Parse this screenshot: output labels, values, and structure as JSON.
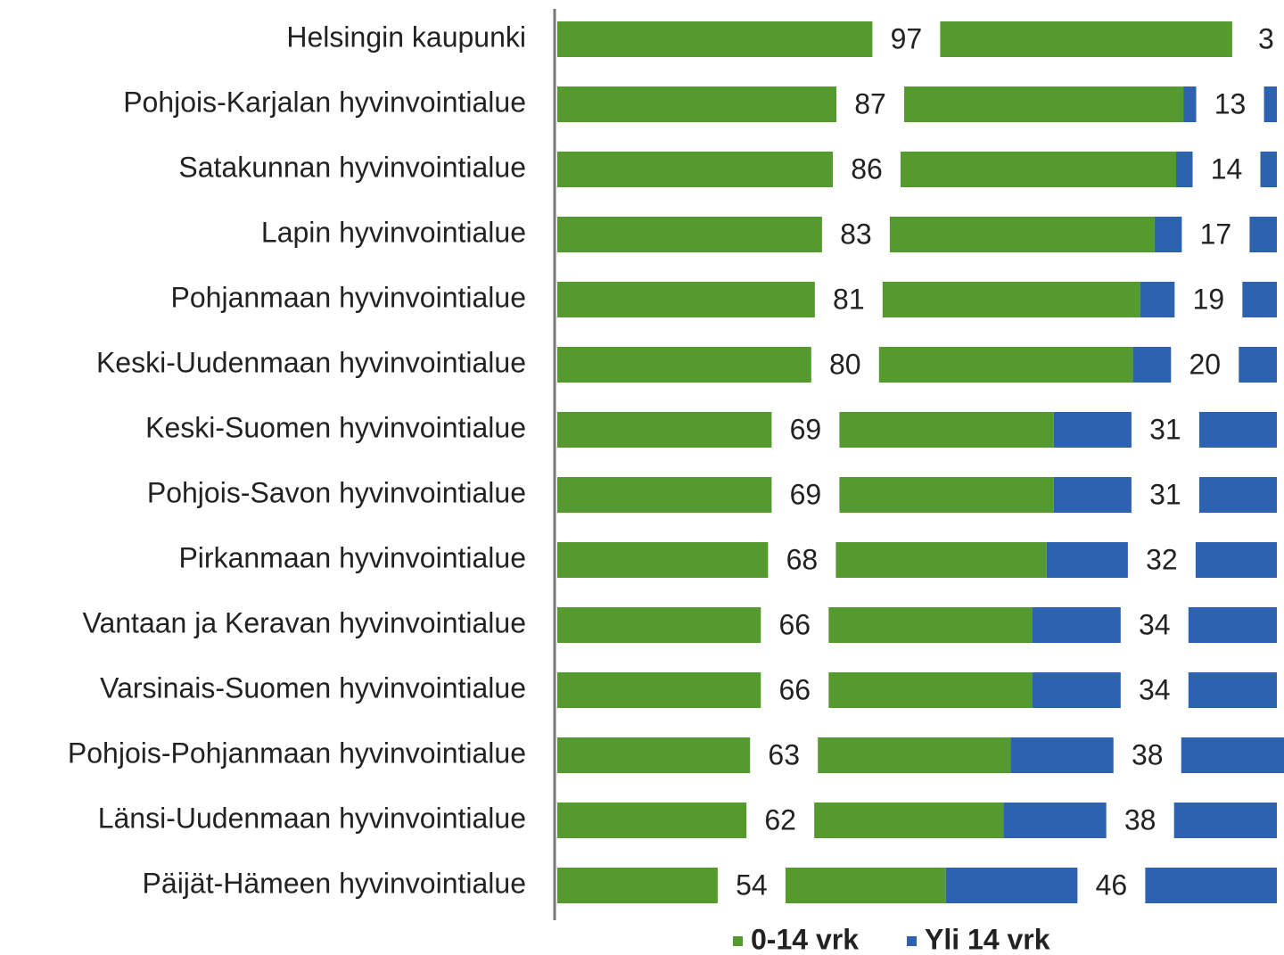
{
  "chart_data": {
    "type": "bar",
    "orientation": "horizontal",
    "stacked": true,
    "categories": [
      "Helsingin kaupunki",
      "Pohjois-Karjalan hyvinvointialue",
      "Satakunnan hyvinvointialue",
      "Lapin hyvinvointialue",
      "Pohjanmaan hyvinvointialue",
      "Keski-Uudenmaan hyvinvointialue",
      "Keski-Suomen hyvinvointialue",
      "Pohjois-Savon hyvinvointialue",
      "Pirkanmaan hyvinvointialue",
      "Vantaan ja Keravan hyvinvointialue",
      "Varsinais-Suomen hyvinvointialue",
      "Pohjois-Pohjanmaan hyvinvointialue",
      "Länsi-Uudenmaan hyvinvointialue",
      "Päijät-Hämeen hyvinvointialue"
    ],
    "series": [
      {
        "name": "0-14 vrk",
        "color": "#559a2f",
        "values": [
          97,
          87,
          86,
          83,
          81,
          80,
          69,
          69,
          68,
          66,
          66,
          63,
          62,
          54
        ]
      },
      {
        "name": "Yli 14 vrk",
        "color": "#2c62b0",
        "values": [
          3,
          13,
          14,
          17,
          19,
          20,
          31,
          31,
          32,
          34,
          34,
          38,
          38,
          46
        ]
      }
    ],
    "xlim": [
      0,
      100
    ],
    "legend": "bottom"
  }
}
